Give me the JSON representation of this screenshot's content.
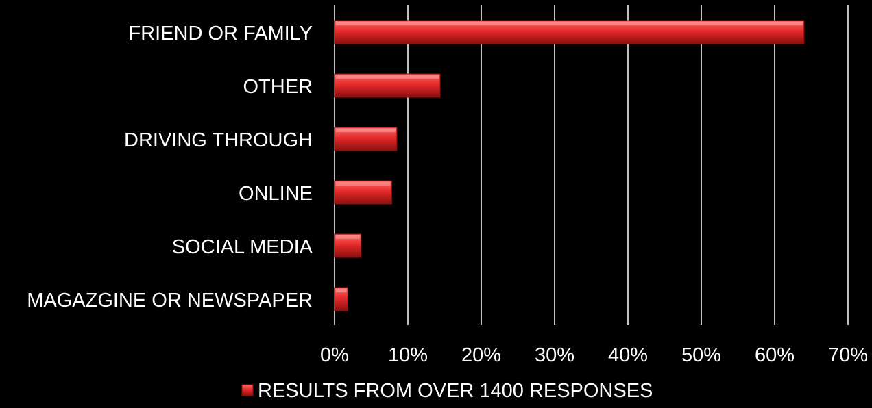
{
  "chart_data": {
    "type": "bar",
    "orientation": "horizontal",
    "categories": [
      "FRIEND OR FAMILY",
      "OTHER",
      "DRIVING THROUGH",
      "ONLINE",
      "SOCIAL MEDIA",
      "MAGAZGINE OR NEWSPAPER"
    ],
    "series": [
      {
        "name": "RESULTS FROM OVER 1400 RESPONSES",
        "values": [
          0.64,
          0.144,
          0.085,
          0.078,
          0.036,
          0.018
        ]
      }
    ],
    "xlim": [
      0,
      0.7
    ],
    "xticks": [
      0,
      0.1,
      0.2,
      0.3,
      0.4,
      0.5,
      0.6,
      0.7
    ],
    "xtick_labels": [
      "0%",
      "10%",
      "20%",
      "30%",
      "40%",
      "50%",
      "60%",
      "70%"
    ],
    "grid": "vertical",
    "legend_position": "bottom",
    "colors": {
      "background": "#000000",
      "bar_light": "#ff6a6a",
      "bar_main": "#e52a2a",
      "bar_dark": "#8c0f0f",
      "grid": "#ffffff",
      "text": "#ffffff"
    }
  }
}
